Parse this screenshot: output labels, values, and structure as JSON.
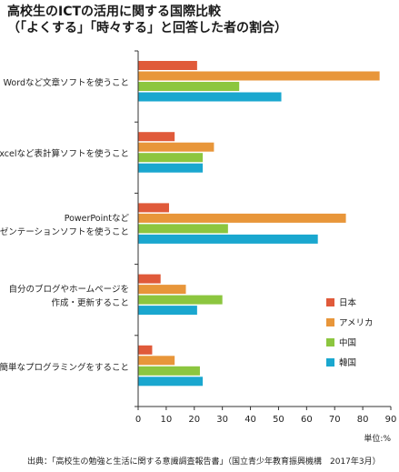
{
  "title_line1": "高校生のICTの活用に関する国際比較",
  "title_line2": "（「よくする」「時々する」と回答した者の割合）",
  "unit_label": "単位:%",
  "source": "出典：「高校生の勉強と生活に関する意識調査報告書」（国立青少年教育振興機構　2017年3月）",
  "colors": {
    "日本": "#e05a3a",
    "アメリカ": "#e8963a",
    "中国": "#8cc63f",
    "韓国": "#1aa7cf"
  },
  "chart_data": {
    "type": "bar",
    "orientation": "horizontal",
    "categories": [
      [
        "Wordなど文章ソフトを使うこと"
      ],
      [
        "Excelなど表計算ソフトを使うこと"
      ],
      [
        "PowerPointなど",
        "プレゼンテーションソフトを使うこと"
      ],
      [
        "自分のブログやホームページを",
        "作成・更新すること"
      ],
      [
        "簡単なプログラミングをすること"
      ]
    ],
    "series": [
      {
        "name": "日本",
        "values": [
          21,
          13,
          11,
          8,
          5
        ]
      },
      {
        "name": "アメリカ",
        "values": [
          86,
          27,
          74,
          17,
          13
        ]
      },
      {
        "name": "中国",
        "values": [
          36,
          23,
          32,
          30,
          22
        ]
      },
      {
        "name": "韓国",
        "values": [
          51,
          23,
          64,
          21,
          23
        ]
      }
    ],
    "xlim": [
      0,
      90
    ],
    "xticks": [
      0,
      10,
      20,
      30,
      40,
      50,
      60,
      70,
      80,
      90
    ],
    "legend_position": "right-bottom",
    "grid": false
  }
}
